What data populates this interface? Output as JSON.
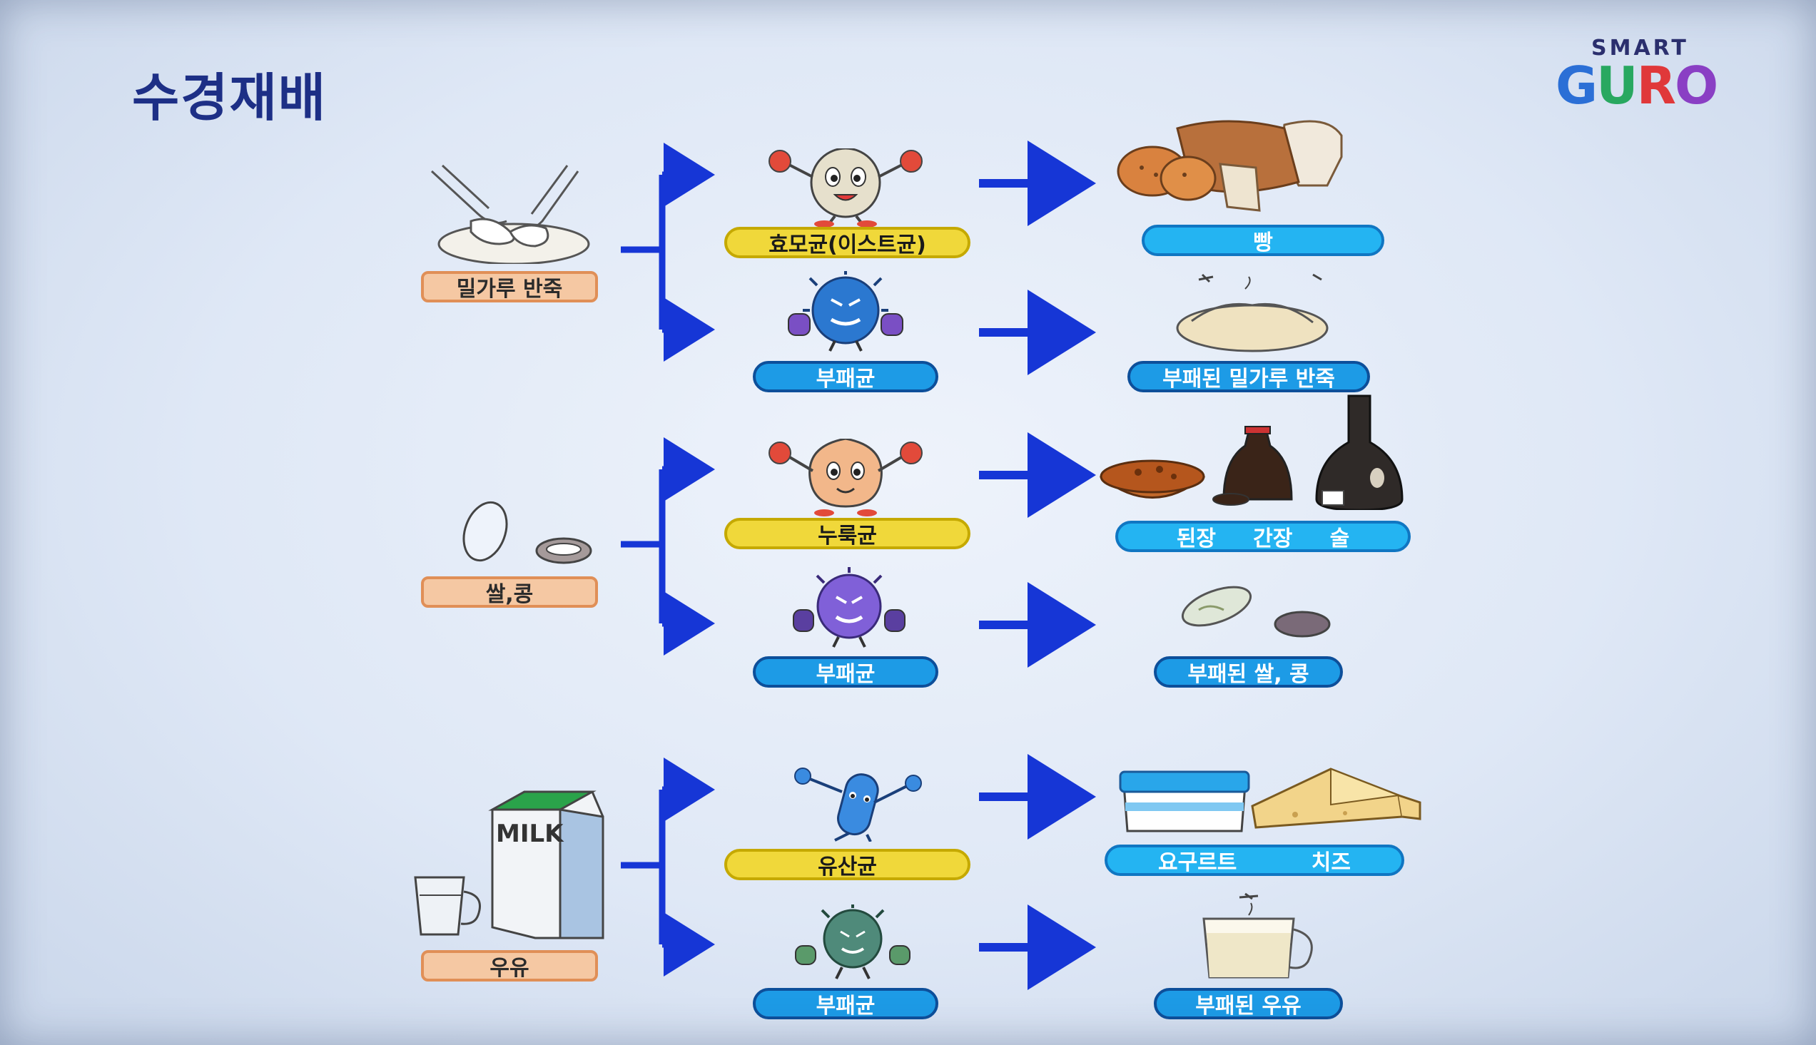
{
  "title": "수경재배",
  "logo": {
    "top": "SMART",
    "bottom": "GURO"
  },
  "rows": [
    {
      "source": "밀가루 반죽",
      "good_microbe": "효모균(이스트균)",
      "good_result": "빵",
      "bad_microbe": "부패균",
      "bad_result": "부패된 밀가루 반죽"
    },
    {
      "source": "쌀,콩",
      "good_microbe": "누룩균",
      "good_result": "된장     간장     술",
      "bad_microbe": "부패균",
      "bad_result": "부패된 쌀, 콩"
    },
    {
      "source": "우유",
      "good_microbe": "유산균",
      "good_result": "요구르트          치즈",
      "bad_microbe": "부패균",
      "bad_result": "부패된 우유"
    }
  ],
  "milk_label": "MILK",
  "colors": {
    "arrow": "#1636d6",
    "title": "#1d2f86",
    "source_pill": "#f5c8a3",
    "good_pill": "#f0d83a",
    "bad_pill": "#1d9be6",
    "result_pill": "#24b4f2"
  }
}
